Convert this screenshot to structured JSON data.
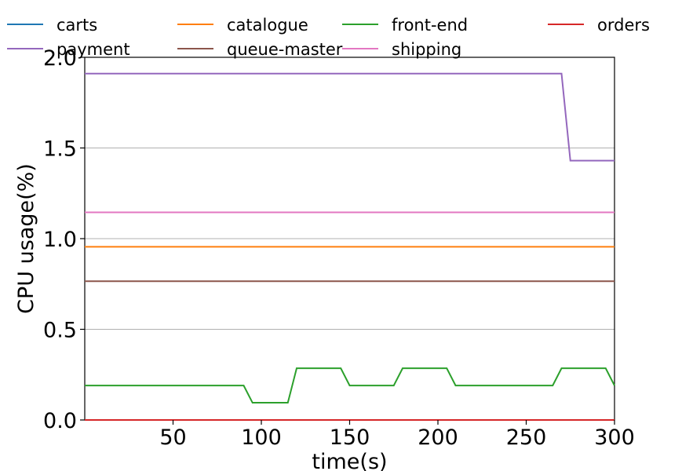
{
  "chart_data": {
    "type": "line",
    "xlabel": "time(s)",
    "ylabel": "CPU usage(%)",
    "xlim": [
      0,
      300
    ],
    "ylim": [
      0,
      2.0
    ],
    "xticks": [
      50,
      100,
      150,
      200,
      250,
      300
    ],
    "yticks": [
      0.0,
      0.5,
      1.0,
      1.5,
      2.0
    ],
    "ytick_labels": [
      "0.0",
      "0.5",
      "1.0",
      "1.5",
      "2.0"
    ],
    "grid": "horizontal",
    "legend_position": "top",
    "series": [
      {
        "name": "carts",
        "color": "#1f77b4",
        "points": [
          [
            0,
            0.0
          ],
          [
            300,
            0.0
          ]
        ]
      },
      {
        "name": "catalogue",
        "color": "#ff7f0e",
        "points": [
          [
            0,
            0.955
          ],
          [
            300,
            0.955
          ]
        ]
      },
      {
        "name": "front-end",
        "color": "#2ca02c",
        "points": [
          [
            0,
            0.19
          ],
          [
            90,
            0.19
          ],
          [
            95,
            0.095
          ],
          [
            115,
            0.095
          ],
          [
            120,
            0.285
          ],
          [
            145,
            0.285
          ],
          [
            150,
            0.19
          ],
          [
            175,
            0.19
          ],
          [
            180,
            0.285
          ],
          [
            205,
            0.285
          ],
          [
            210,
            0.19
          ],
          [
            265,
            0.19
          ],
          [
            270,
            0.285
          ],
          [
            295,
            0.285
          ],
          [
            300,
            0.19
          ]
        ]
      },
      {
        "name": "orders",
        "color": "#d62728",
        "points": [
          [
            0,
            0.0
          ],
          [
            300,
            0.0
          ]
        ]
      },
      {
        "name": "payment",
        "color": "#9467bd",
        "points": [
          [
            0,
            1.91
          ],
          [
            270,
            1.91
          ],
          [
            275,
            1.43
          ],
          [
            300,
            1.43
          ]
        ]
      },
      {
        "name": "queue-master",
        "color": "#8c564b",
        "points": [
          [
            0,
            0.765
          ],
          [
            300,
            0.765
          ]
        ]
      },
      {
        "name": "shipping",
        "color": "#e377c2",
        "points": [
          [
            0,
            1.145
          ],
          [
            300,
            1.145
          ]
        ]
      }
    ]
  }
}
